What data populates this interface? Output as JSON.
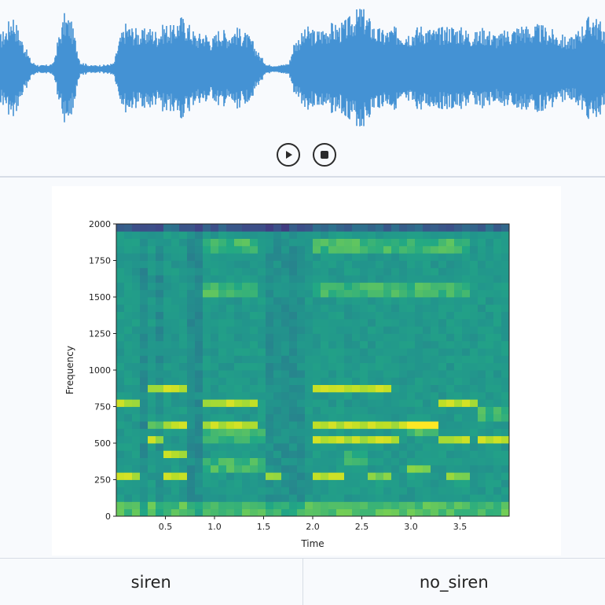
{
  "waveform": {
    "color": "#4492d4",
    "play_icon": "play-icon",
    "stop_icon": "stop-icon"
  },
  "chart_data": {
    "type": "heatmap",
    "xlabel": "Time",
    "ylabel": "Frequency",
    "xlim": [
      0,
      4.0
    ],
    "ylim": [
      0,
      2000
    ],
    "x_ticks": [
      "0.5",
      "1.0",
      "1.5",
      "2.0",
      "2.5",
      "3.0",
      "3.5"
    ],
    "x_tick_values": [
      0.5,
      1.0,
      1.5,
      2.0,
      2.5,
      3.0,
      3.5
    ],
    "y_ticks": [
      "0",
      "250",
      "500",
      "750",
      "1000",
      "1250",
      "1500",
      "1750",
      "2000"
    ],
    "y_tick_values": [
      0,
      250,
      500,
      750,
      1000,
      1250,
      1500,
      1750,
      2000
    ],
    "colormap": "viridis",
    "grid": false
  },
  "labels": {
    "siren": "siren",
    "no_siren": "no_siren"
  }
}
